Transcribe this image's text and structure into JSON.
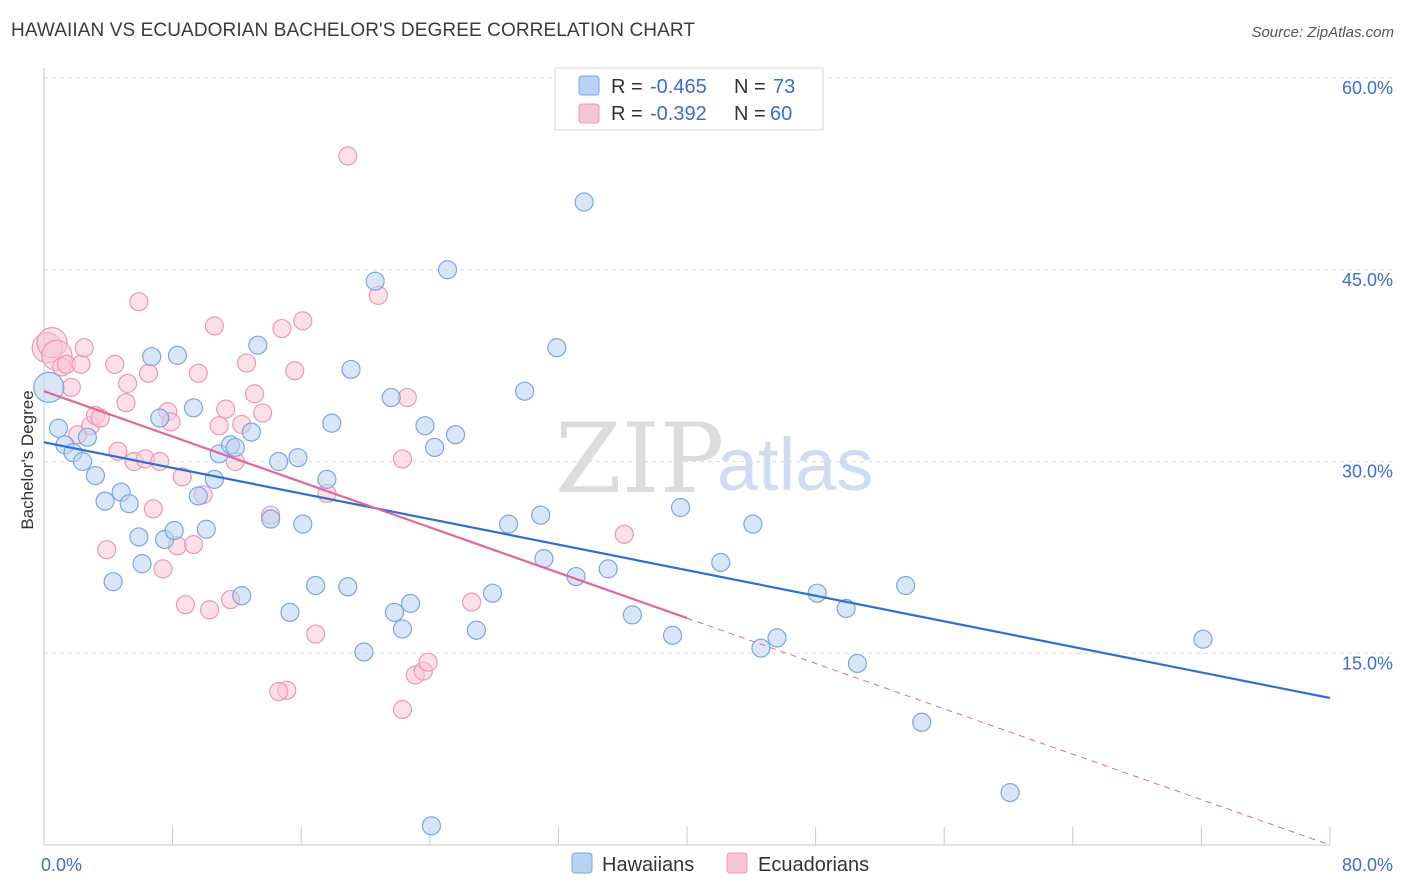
{
  "title": "HAWAIIAN VS ECUADORIAN BACHELOR'S DEGREE CORRELATION CHART",
  "source": "Source: ZipAtlas.com",
  "watermark": {
    "zip": "ZIP",
    "atlas": "atlas"
  },
  "colors": {
    "hawaiians_fill": "#b9d2f3",
    "hawaiians_stroke": "#7aa6e3",
    "hawaiians_line": "#2f6fd1",
    "ecuadorians_fill": "#f7c6d6",
    "ecuadorians_stroke": "#ec98b5",
    "ecuadorians_line": "#e0679a",
    "grid": "#dddddd",
    "axis_label": "#3b6fce"
  },
  "legend": {
    "r_label": "R =",
    "n_label": "N =",
    "rows": [
      {
        "r": "-0.465",
        "n": "73"
      },
      {
        "r": "-0.392",
        "n": "60"
      }
    ]
  },
  "chart_data": {
    "type": "scatter",
    "xlabel": "",
    "ylabel": "Bachelor's Degree",
    "xlim": [
      0,
      80
    ],
    "ylim": [
      0,
      60
    ],
    "x_tick_labels": [
      "0.0%",
      "80.0%"
    ],
    "y_ticks": [
      15,
      30,
      45,
      60
    ],
    "y_tick_labels": [
      "15.0%",
      "30.0%",
      "45.0%",
      "60.0%"
    ],
    "grid": true,
    "legend_position": "bottom-center",
    "series": [
      {
        "name": "Hawaiians",
        "trend": {
          "x": [
            0,
            80
          ],
          "y": [
            31.5,
            11.5
          ],
          "dashed_from": null
        },
        "points": [
          [
            0.3,
            35.8
          ],
          [
            0.9,
            32.6
          ],
          [
            1.3,
            31.3
          ],
          [
            1.8,
            30.7
          ],
          [
            2.4,
            30.0
          ],
          [
            2.7,
            31.9
          ],
          [
            3.2,
            28.9
          ],
          [
            3.8,
            26.9
          ],
          [
            4.3,
            20.6
          ],
          [
            4.8,
            27.6
          ],
          [
            5.3,
            26.7
          ],
          [
            5.9,
            24.1
          ],
          [
            6.1,
            22.0
          ],
          [
            6.7,
            38.2
          ],
          [
            7.2,
            33.4
          ],
          [
            7.5,
            23.9
          ],
          [
            8.1,
            24.6
          ],
          [
            8.3,
            38.3
          ],
          [
            9.3,
            34.2
          ],
          [
            9.6,
            27.3
          ],
          [
            10.1,
            24.7
          ],
          [
            10.6,
            28.6
          ],
          [
            10.9,
            30.6
          ],
          [
            11.6,
            31.3
          ],
          [
            12.3,
            19.5
          ],
          [
            12.9,
            32.3
          ],
          [
            13.3,
            39.1
          ],
          [
            14.1,
            25.5
          ],
          [
            14.6,
            30.0
          ],
          [
            15.3,
            18.2
          ],
          [
            15.8,
            30.3
          ],
          [
            16.1,
            25.1
          ],
          [
            16.9,
            20.3
          ],
          [
            17.6,
            28.6
          ],
          [
            17.9,
            33.0
          ],
          [
            18.9,
            20.2
          ],
          [
            19.1,
            37.2
          ],
          [
            19.9,
            15.1
          ],
          [
            20.6,
            44.1
          ],
          [
            21.6,
            35.0
          ],
          [
            21.8,
            18.2
          ],
          [
            22.3,
            16.9
          ],
          [
            22.8,
            18.9
          ],
          [
            23.7,
            32.8
          ],
          [
            24.3,
            31.1
          ],
          [
            25.1,
            45.0
          ],
          [
            25.6,
            32.1
          ],
          [
            26.9,
            16.8
          ],
          [
            27.9,
            19.7
          ],
          [
            28.9,
            25.1
          ],
          [
            29.9,
            35.5
          ],
          [
            30.9,
            25.8
          ],
          [
            31.1,
            22.4
          ],
          [
            31.9,
            38.9
          ],
          [
            33.1,
            21.0
          ],
          [
            33.6,
            50.3
          ],
          [
            35.1,
            21.6
          ],
          [
            36.6,
            18.0
          ],
          [
            39.1,
            16.4
          ],
          [
            39.6,
            26.4
          ],
          [
            42.1,
            22.1
          ],
          [
            44.1,
            25.1
          ],
          [
            44.6,
            15.4
          ],
          [
            45.6,
            16.2
          ],
          [
            48.1,
            19.7
          ],
          [
            49.9,
            18.5
          ],
          [
            50.6,
            14.2
          ],
          [
            53.6,
            20.3
          ],
          [
            54.6,
            9.6
          ],
          [
            60.1,
            4.1
          ],
          [
            72.1,
            16.1
          ],
          [
            24.1,
            1.5
          ],
          [
            11.9,
            31.1
          ]
        ]
      },
      {
        "name": "Ecuadorians",
        "trend": {
          "x": [
            0,
            80
          ],
          "y": [
            35.5,
            0
          ],
          "dashed_from": 40
        },
        "points": [
          [
            0.2,
            38.9
          ],
          [
            0.5,
            39.3
          ],
          [
            0.8,
            38.3
          ],
          [
            1.1,
            37.4
          ],
          [
            1.4,
            37.6
          ],
          [
            1.7,
            35.8
          ],
          [
            2.1,
            32.1
          ],
          [
            2.3,
            37.6
          ],
          [
            2.5,
            38.9
          ],
          [
            2.9,
            32.8
          ],
          [
            3.2,
            33.6
          ],
          [
            3.5,
            33.4
          ],
          [
            3.9,
            23.1
          ],
          [
            4.4,
            37.6
          ],
          [
            4.6,
            30.8
          ],
          [
            5.1,
            34.6
          ],
          [
            5.2,
            36.1
          ],
          [
            5.6,
            30.0
          ],
          [
            5.9,
            42.5
          ],
          [
            6.3,
            30.2
          ],
          [
            6.5,
            36.9
          ],
          [
            6.8,
            26.3
          ],
          [
            7.2,
            30.0
          ],
          [
            7.4,
            21.6
          ],
          [
            7.7,
            33.9
          ],
          [
            7.9,
            33.1
          ],
          [
            8.3,
            23.4
          ],
          [
            8.6,
            28.8
          ],
          [
            8.8,
            18.8
          ],
          [
            9.3,
            23.5
          ],
          [
            9.6,
            36.9
          ],
          [
            9.9,
            27.4
          ],
          [
            10.3,
            18.4
          ],
          [
            10.6,
            40.6
          ],
          [
            10.9,
            32.8
          ],
          [
            11.3,
            34.1
          ],
          [
            11.6,
            19.2
          ],
          [
            11.9,
            30.0
          ],
          [
            12.3,
            32.9
          ],
          [
            12.6,
            37.7
          ],
          [
            13.1,
            35.3
          ],
          [
            13.6,
            33.8
          ],
          [
            14.1,
            25.8
          ],
          [
            14.8,
            40.4
          ],
          [
            15.6,
            37.1
          ],
          [
            16.1,
            41.0
          ],
          [
            16.9,
            16.5
          ],
          [
            17.6,
            27.5
          ],
          [
            18.9,
            53.9
          ],
          [
            20.8,
            43.0
          ],
          [
            22.3,
            30.2
          ],
          [
            22.6,
            35.0
          ],
          [
            23.1,
            13.3
          ],
          [
            23.6,
            13.6
          ],
          [
            23.9,
            14.3
          ],
          [
            26.6,
            19.0
          ],
          [
            36.1,
            24.3
          ],
          [
            15.1,
            12.1
          ],
          [
            22.3,
            10.6
          ],
          [
            14.6,
            12.0
          ]
        ]
      }
    ]
  },
  "bottom_legend": [
    "Hawaiians",
    "Ecuadorians"
  ]
}
